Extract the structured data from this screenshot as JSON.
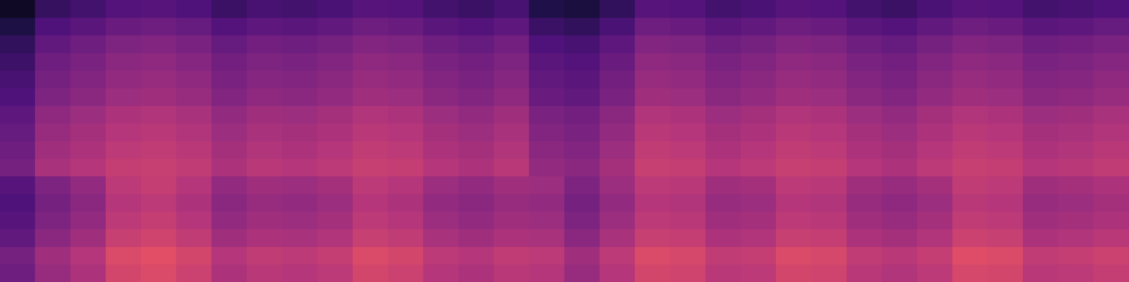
{
  "chart_data": {
    "type": "heatmap",
    "tick_labels": false,
    "grid": false,
    "color_range": [
      0,
      1
    ],
    "cells": [
      [
        0.07,
        0.19,
        0.22,
        0.26,
        0.27,
        0.25,
        0.2,
        0.23,
        0.22,
        0.24,
        0.27,
        0.26,
        0.22,
        0.2,
        0.23,
        0.14,
        0.12,
        0.18,
        0.27,
        0.26,
        0.22,
        0.24,
        0.27,
        0.26,
        0.22,
        0.2,
        0.24,
        0.27,
        0.26,
        0.22,
        0.23,
        0.25
      ],
      [
        0.13,
        0.25,
        0.28,
        0.32,
        0.33,
        0.31,
        0.26,
        0.29,
        0.28,
        0.3,
        0.33,
        0.32,
        0.28,
        0.26,
        0.29,
        0.2,
        0.18,
        0.24,
        0.33,
        0.32,
        0.28,
        0.3,
        0.33,
        0.32,
        0.28,
        0.26,
        0.3,
        0.33,
        0.32,
        0.28,
        0.29,
        0.31
      ],
      [
        0.18,
        0.3,
        0.33,
        0.37,
        0.38,
        0.36,
        0.31,
        0.34,
        0.33,
        0.35,
        0.38,
        0.37,
        0.33,
        0.31,
        0.34,
        0.25,
        0.23,
        0.29,
        0.38,
        0.37,
        0.33,
        0.35,
        0.38,
        0.37,
        0.33,
        0.31,
        0.35,
        0.38,
        0.37,
        0.33,
        0.34,
        0.36
      ],
      [
        0.21,
        0.33,
        0.36,
        0.4,
        0.41,
        0.39,
        0.34,
        0.37,
        0.36,
        0.38,
        0.41,
        0.4,
        0.36,
        0.34,
        0.37,
        0.28,
        0.26,
        0.32,
        0.41,
        0.4,
        0.36,
        0.38,
        0.41,
        0.4,
        0.36,
        0.34,
        0.38,
        0.41,
        0.4,
        0.36,
        0.37,
        0.39
      ],
      [
        0.23,
        0.35,
        0.38,
        0.42,
        0.43,
        0.41,
        0.36,
        0.39,
        0.38,
        0.4,
        0.43,
        0.42,
        0.38,
        0.36,
        0.39,
        0.3,
        0.28,
        0.34,
        0.43,
        0.42,
        0.38,
        0.4,
        0.43,
        0.42,
        0.38,
        0.36,
        0.4,
        0.43,
        0.42,
        0.38,
        0.39,
        0.41
      ],
      [
        0.25,
        0.37,
        0.4,
        0.44,
        0.45,
        0.43,
        0.38,
        0.41,
        0.4,
        0.42,
        0.45,
        0.44,
        0.4,
        0.38,
        0.41,
        0.32,
        0.3,
        0.36,
        0.45,
        0.44,
        0.4,
        0.42,
        0.45,
        0.44,
        0.4,
        0.38,
        0.42,
        0.45,
        0.44,
        0.4,
        0.41,
        0.43
      ],
      [
        0.29,
        0.41,
        0.44,
        0.48,
        0.49,
        0.47,
        0.42,
        0.45,
        0.44,
        0.46,
        0.49,
        0.48,
        0.44,
        0.42,
        0.45,
        0.36,
        0.34,
        0.4,
        0.49,
        0.48,
        0.44,
        0.46,
        0.49,
        0.48,
        0.44,
        0.42,
        0.46,
        0.49,
        0.48,
        0.44,
        0.45,
        0.47
      ],
      [
        0.31,
        0.43,
        0.46,
        0.5,
        0.51,
        0.49,
        0.44,
        0.47,
        0.46,
        0.48,
        0.51,
        0.5,
        0.46,
        0.44,
        0.47,
        0.38,
        0.36,
        0.42,
        0.51,
        0.5,
        0.46,
        0.48,
        0.51,
        0.5,
        0.46,
        0.44,
        0.48,
        0.51,
        0.5,
        0.46,
        0.47,
        0.49
      ],
      [
        0.33,
        0.45,
        0.48,
        0.52,
        0.53,
        0.51,
        0.46,
        0.49,
        0.48,
        0.5,
        0.53,
        0.52,
        0.48,
        0.46,
        0.49,
        0.4,
        0.38,
        0.44,
        0.53,
        0.52,
        0.48,
        0.5,
        0.53,
        0.52,
        0.48,
        0.46,
        0.5,
        0.53,
        0.52,
        0.48,
        0.49,
        0.51
      ],
      [
        0.35,
        0.47,
        0.5,
        0.54,
        0.55,
        0.53,
        0.48,
        0.51,
        0.5,
        0.52,
        0.55,
        0.54,
        0.5,
        0.48,
        0.51,
        0.42,
        0.4,
        0.46,
        0.55,
        0.54,
        0.5,
        0.52,
        0.55,
        0.54,
        0.5,
        0.48,
        0.52,
        0.55,
        0.54,
        0.5,
        0.51,
        0.53
      ],
      [
        0.27,
        0.37,
        0.42,
        0.52,
        0.54,
        0.5,
        0.42,
        0.45,
        0.44,
        0.46,
        0.52,
        0.5,
        0.44,
        0.42,
        0.45,
        0.44,
        0.37,
        0.44,
        0.52,
        0.51,
        0.45,
        0.46,
        0.52,
        0.51,
        0.45,
        0.43,
        0.46,
        0.53,
        0.52,
        0.45,
        0.46,
        0.48
      ],
      [
        0.25,
        0.35,
        0.4,
        0.5,
        0.52,
        0.48,
        0.4,
        0.43,
        0.42,
        0.44,
        0.5,
        0.48,
        0.42,
        0.4,
        0.43,
        0.42,
        0.35,
        0.42,
        0.5,
        0.49,
        0.43,
        0.44,
        0.5,
        0.49,
        0.43,
        0.41,
        0.44,
        0.51,
        0.5,
        0.43,
        0.44,
        0.46
      ],
      [
        0.27,
        0.37,
        0.42,
        0.52,
        0.54,
        0.5,
        0.42,
        0.45,
        0.44,
        0.46,
        0.52,
        0.5,
        0.44,
        0.42,
        0.45,
        0.44,
        0.37,
        0.44,
        0.52,
        0.51,
        0.45,
        0.46,
        0.52,
        0.51,
        0.45,
        0.43,
        0.46,
        0.53,
        0.52,
        0.45,
        0.46,
        0.48
      ],
      [
        0.3,
        0.4,
        0.45,
        0.55,
        0.57,
        0.53,
        0.45,
        0.48,
        0.47,
        0.49,
        0.55,
        0.53,
        0.47,
        0.45,
        0.48,
        0.47,
        0.4,
        0.47,
        0.55,
        0.54,
        0.48,
        0.49,
        0.55,
        0.54,
        0.48,
        0.46,
        0.49,
        0.56,
        0.55,
        0.48,
        0.49,
        0.51
      ],
      [
        0.35,
        0.45,
        0.5,
        0.6,
        0.62,
        0.58,
        0.5,
        0.53,
        0.52,
        0.54,
        0.6,
        0.58,
        0.52,
        0.5,
        0.53,
        0.52,
        0.45,
        0.52,
        0.6,
        0.59,
        0.53,
        0.54,
        0.6,
        0.59,
        0.53,
        0.51,
        0.54,
        0.61,
        0.6,
        0.53,
        0.54,
        0.56
      ],
      [
        0.33,
        0.43,
        0.48,
        0.58,
        0.6,
        0.56,
        0.48,
        0.51,
        0.5,
        0.52,
        0.58,
        0.56,
        0.5,
        0.48,
        0.51,
        0.5,
        0.43,
        0.5,
        0.58,
        0.57,
        0.51,
        0.52,
        0.58,
        0.57,
        0.51,
        0.49,
        0.52,
        0.59,
        0.58,
        0.51,
        0.52,
        0.54
      ]
    ]
  }
}
